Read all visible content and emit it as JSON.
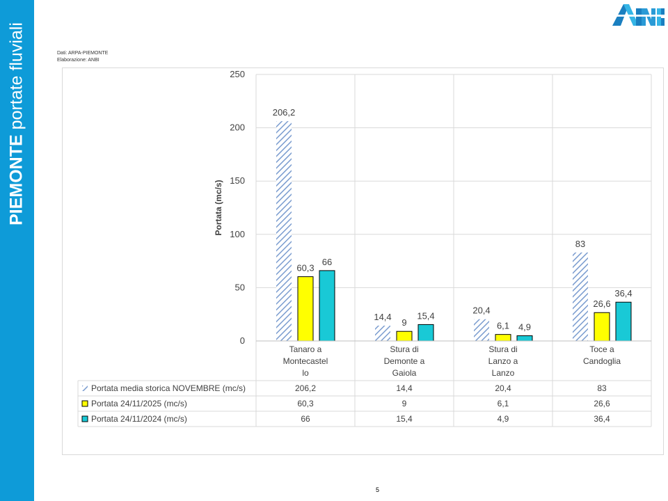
{
  "sidebar": {
    "title_bold": "PIEMONTE",
    "title_rest": " portate fluviali"
  },
  "logo": {
    "text": "ANBI"
  },
  "source": {
    "line1": "Dati: ARPA-PIEMONTE",
    "line2": "Elaborazione: ANBI"
  },
  "page_number": "5",
  "colors": {
    "sidebar": "#0e9bd8",
    "historic": "#7a9ccf",
    "y2025": "#ffff00",
    "y2024": "#19c9d6"
  },
  "chart_data": {
    "type": "bar",
    "title": "",
    "ylabel": "Portata (mc/s)",
    "ylim": [
      0,
      250
    ],
    "yticks": [
      0,
      50,
      100,
      150,
      200,
      250
    ],
    "grid": true,
    "categories": [
      [
        "Tanaro a",
        "Montecastel",
        "lo"
      ],
      [
        "Stura di",
        "Demonte a",
        "Gaiola"
      ],
      [
        "Stura di",
        "Lanzo a",
        "Lanzo"
      ],
      [
        "Toce a",
        "Candoglia"
      ]
    ],
    "series": [
      {
        "name": "Portata media storica NOVEMBRE (mc/s)",
        "values": [
          206.2,
          14.4,
          20.4,
          83
        ],
        "labels": [
          "206,2",
          "14,4",
          "20,4",
          "83"
        ],
        "style": "hatched"
      },
      {
        "name": "Portata 24/11/2025 (mc/s)",
        "values": [
          60.3,
          9,
          6.1,
          26.6
        ],
        "labels": [
          "60,3",
          "9",
          "6,1",
          "26,6"
        ],
        "style": "solid"
      },
      {
        "name": "Portata 24/11/2024 (mc/s)",
        "values": [
          66,
          15.4,
          4.9,
          36.4
        ],
        "labels": [
          "66",
          "15,4",
          "4,9",
          "36,4"
        ],
        "style": "solid"
      }
    ],
    "data_table": true
  }
}
